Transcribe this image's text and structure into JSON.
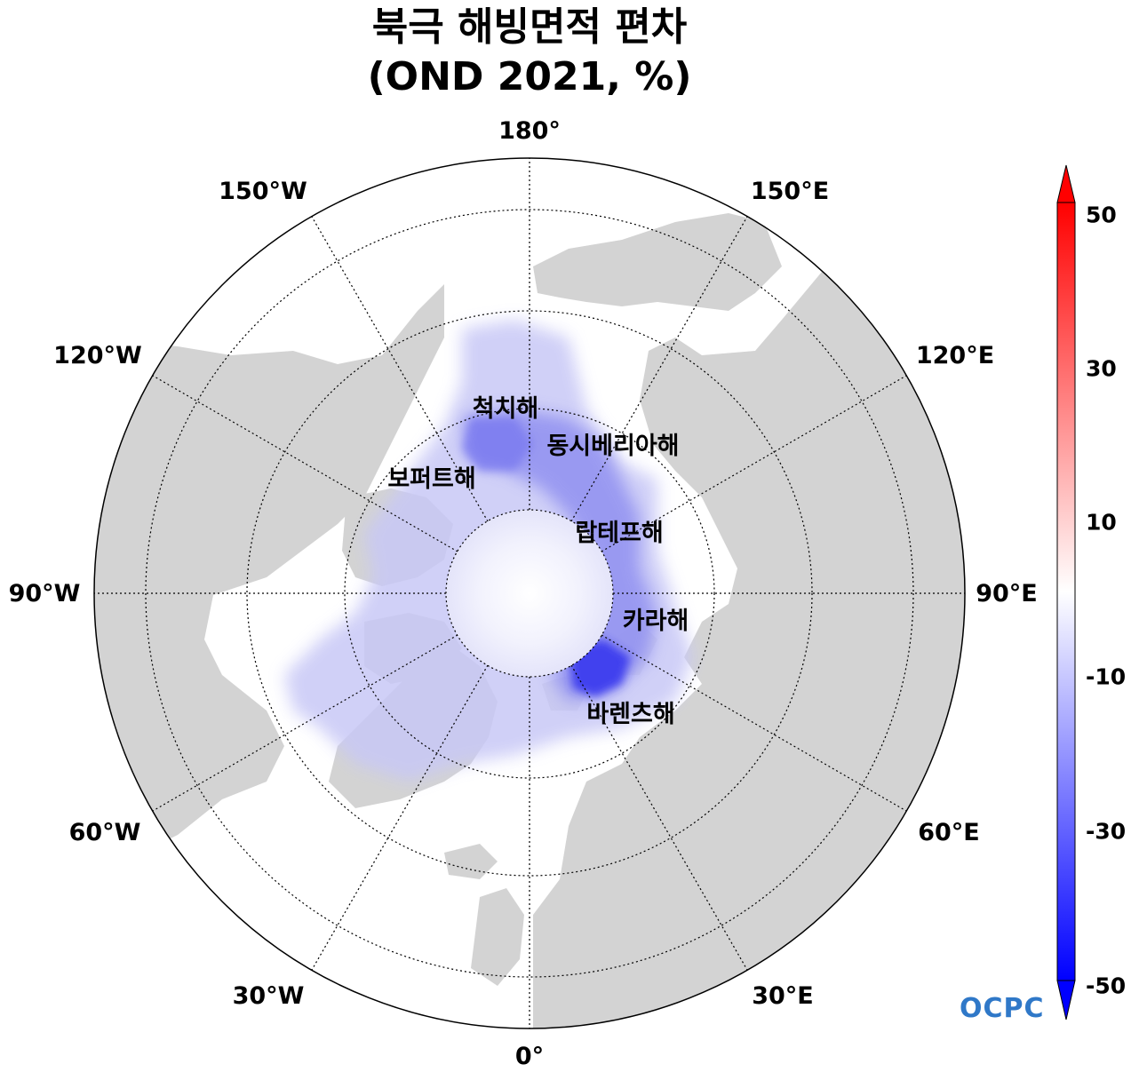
{
  "title": {
    "line1": "북극 해빙면적 편차",
    "line2": "(OND 2021, %)"
  },
  "longitude_labels": {
    "n180": "180°",
    "w150": "150°W",
    "e150": "150°E",
    "w120": "120°W",
    "e120": "120°E",
    "w90": "90°W",
    "e90": "90°E",
    "w60": "60°W",
    "e60": "60°E",
    "w30": "30°W",
    "e30": "30°E",
    "s0": "0°"
  },
  "regions": {
    "chukchi": "척치해",
    "east_siberian": "동시베리아해",
    "beaufort": "보퍼트해",
    "laptev": "랍테프해",
    "kara": "카라해",
    "barents": "바렌츠해"
  },
  "colorbar": {
    "ticks": [
      "50",
      "30",
      "10",
      "-10",
      "-30",
      "-50"
    ],
    "colors": {
      "max": "#ff0000",
      "mid": "#ffffff",
      "min": "#0000ff"
    }
  },
  "logo": "OCPC",
  "map_colors": {
    "land": "#d3d3d3",
    "ocean": "#ffffff",
    "negative_anomaly": "#4a4af0"
  }
}
